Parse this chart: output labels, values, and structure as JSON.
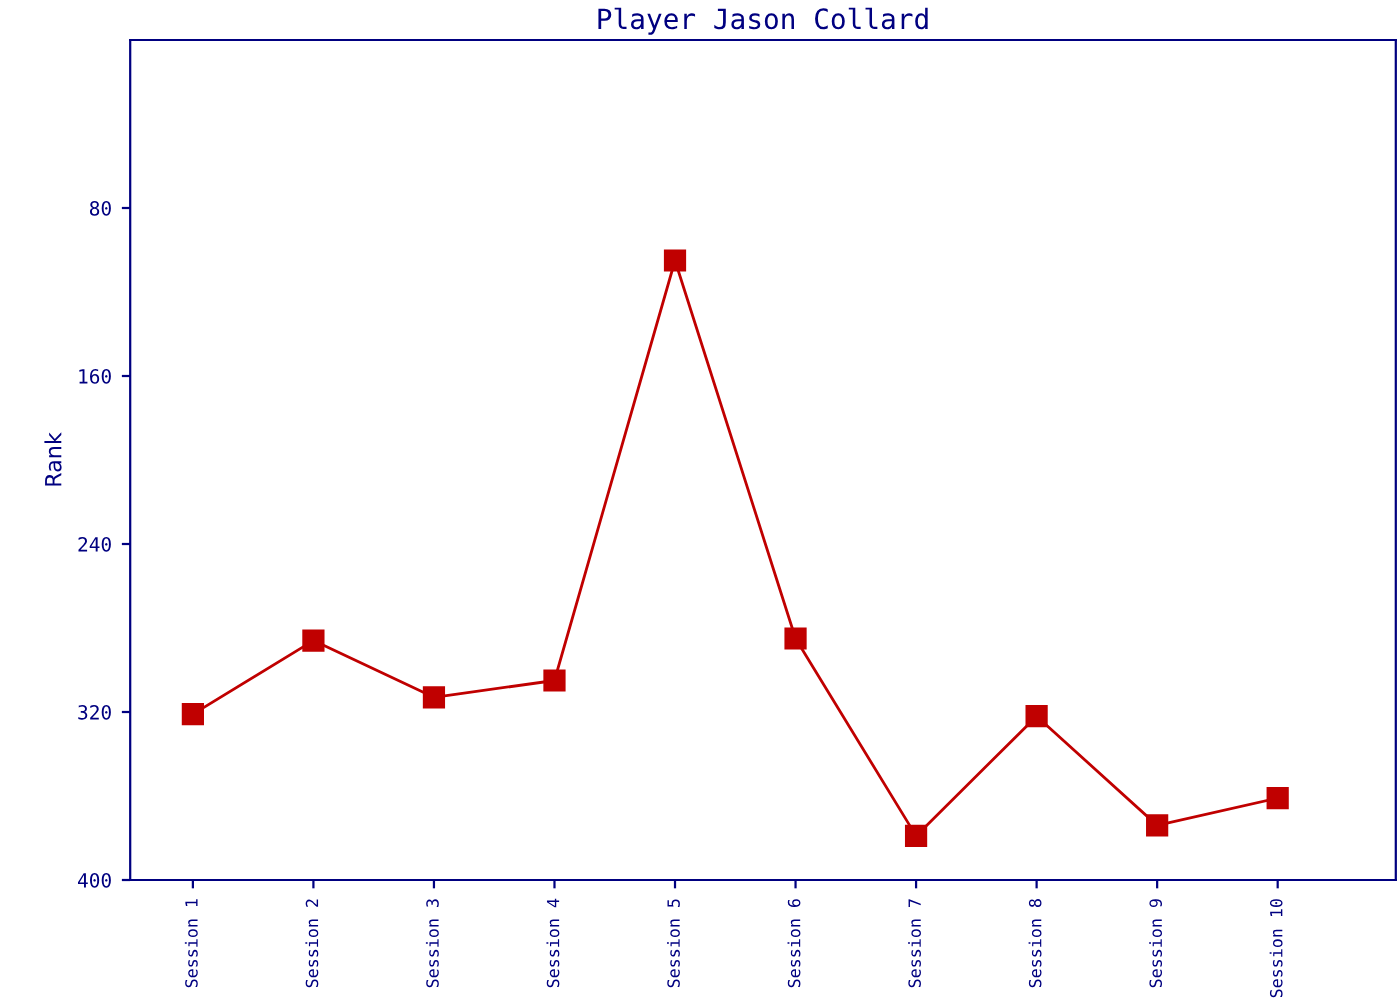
{
  "chart_data": {
    "type": "line",
    "title": "Player Jason Collard",
    "ylabel": "Rank",
    "categories": [
      "Session 1",
      "Session 2",
      "Session 3",
      "Session 4",
      "Session 5",
      "Session 6",
      "Session 7",
      "Session 8",
      "Session 9",
      "Session 10"
    ],
    "series": [
      {
        "color": "#c00000",
        "values": [
          321,
          286,
          313,
          305,
          105,
          285,
          379,
          322,
          374,
          361
        ]
      }
    ],
    "ylim": [
      400,
      0
    ],
    "yticks": [
      80,
      160,
      240,
      320,
      400
    ],
    "marker": "square",
    "line_style": "solid"
  }
}
